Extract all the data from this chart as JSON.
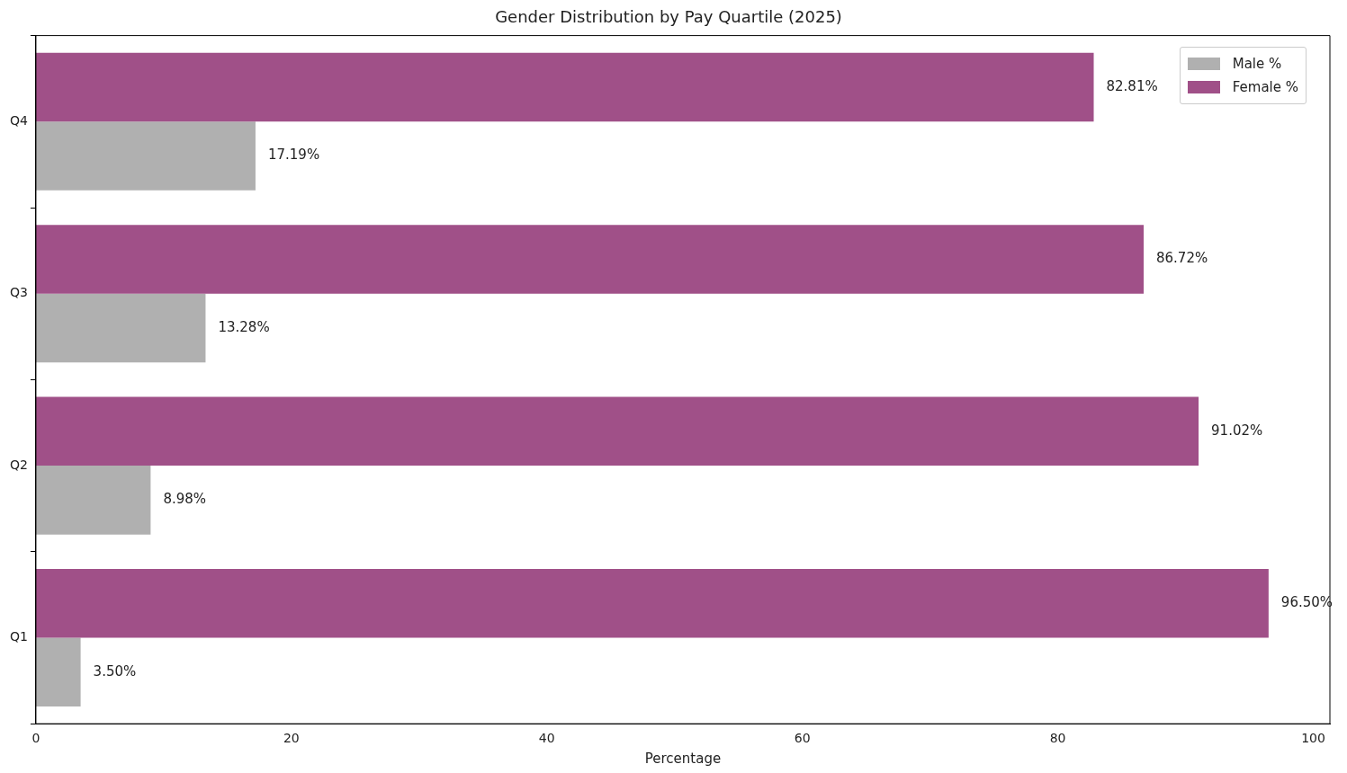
{
  "chart_data": {
    "type": "bar",
    "orientation": "horizontal",
    "title": "Gender Distribution by Pay Quartile (2025)",
    "xlabel": "Percentage",
    "categories": [
      "Q4",
      "Q3",
      "Q2",
      "Q1"
    ],
    "series": [
      {
        "name": "Male %",
        "color": "#b0b0b0",
        "values": [
          17.19,
          13.28,
          8.98,
          3.5
        ],
        "value_labels": [
          "17.19%",
          "13.28%",
          "8.98%",
          "3.50%"
        ]
      },
      {
        "name": "Female %",
        "color": "#a05088",
        "values": [
          82.81,
          86.72,
          91.02,
          96.5
        ],
        "value_labels": [
          "82.81%",
          "86.72%",
          "91.02%",
          "96.50%"
        ]
      }
    ],
    "xlim": [
      0,
      101.3
    ],
    "xticks": [
      0,
      20,
      40,
      60,
      80,
      100
    ],
    "grid": false,
    "legend": "top right"
  }
}
